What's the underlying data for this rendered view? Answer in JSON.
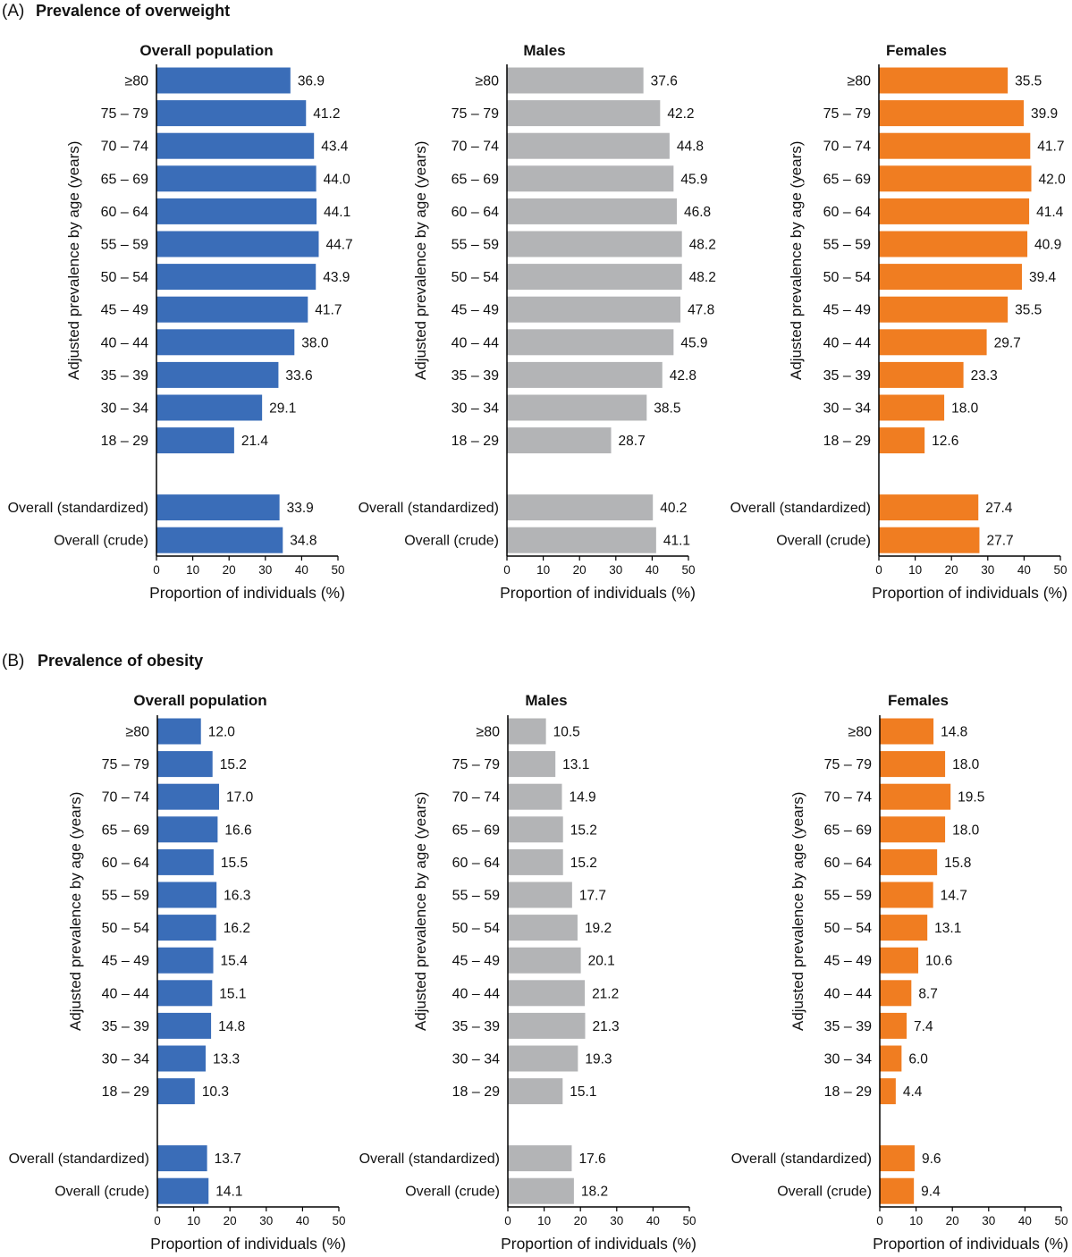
{
  "panels": [
    {
      "letter": "(A)",
      "title": "Prevalence of overweight"
    },
    {
      "letter": "(B)",
      "title": "Prevalence of obesity"
    }
  ],
  "chart_data": [
    {
      "type": "bar",
      "panel": "A",
      "orientation": "horizontal",
      "title": "Overall population",
      "ylabel": "Adjusted prevalence by age (years)",
      "xlabel": "Proportion of individuals (%)",
      "xlim": [
        0,
        50
      ],
      "xticks": [
        0,
        10,
        20,
        30,
        40,
        50
      ],
      "color": "#3A6DB8",
      "categories": [
        "≥80",
        "75 – 79",
        "70 – 74",
        "65 – 69",
        "60 – 64",
        "55 – 59",
        "50 – 54",
        "45 – 49",
        "40 – 44",
        "35 – 39",
        "30 – 34",
        "18 – 29"
      ],
      "values": [
        36.9,
        41.2,
        43.4,
        44.0,
        44.1,
        44.7,
        43.9,
        41.7,
        38.0,
        33.6,
        29.1,
        21.4
      ],
      "summary_categories": [
        "Overall (standardized)",
        "Overall (crude)"
      ],
      "summary_values": [
        33.9,
        34.8
      ]
    },
    {
      "type": "bar",
      "panel": "A",
      "orientation": "horizontal",
      "title": "Males",
      "ylabel": "Adjusted prevalence by age (years)",
      "xlabel": "Proportion of individuals (%)",
      "xlim": [
        0,
        50
      ],
      "xticks": [
        0,
        10,
        20,
        30,
        40,
        50
      ],
      "color": "#B3B4B6",
      "categories": [
        "≥80",
        "75 – 79",
        "70 – 74",
        "65 – 69",
        "60 – 64",
        "55 – 59",
        "50 – 54",
        "45 – 49",
        "40 – 44",
        "35 – 39",
        "30 – 34",
        "18 – 29"
      ],
      "values": [
        37.6,
        42.2,
        44.8,
        45.9,
        46.8,
        48.2,
        48.2,
        47.8,
        45.9,
        42.8,
        38.5,
        28.7
      ],
      "summary_categories": [
        "Overall (standardized)",
        "Overall (crude)"
      ],
      "summary_values": [
        40.2,
        41.1
      ]
    },
    {
      "type": "bar",
      "panel": "A",
      "orientation": "horizontal",
      "title": "Females",
      "ylabel": "Adjusted prevalence by age (years)",
      "xlabel": "Proportion of individuals (%)",
      "xlim": [
        0,
        50
      ],
      "xticks": [
        0,
        10,
        20,
        30,
        40,
        50
      ],
      "color": "#F07D21",
      "categories": [
        "≥80",
        "75 – 79",
        "70 – 74",
        "65 – 69",
        "60 – 64",
        "55 – 59",
        "50 – 54",
        "45 – 49",
        "40 – 44",
        "35 – 39",
        "30 – 34",
        "18 – 29"
      ],
      "values": [
        35.5,
        39.9,
        41.7,
        42.0,
        41.4,
        40.9,
        39.4,
        35.5,
        29.7,
        23.3,
        18.0,
        12.6
      ],
      "summary_categories": [
        "Overall (standardized)",
        "Overall (crude)"
      ],
      "summary_values": [
        27.4,
        27.7
      ]
    },
    {
      "type": "bar",
      "panel": "B",
      "orientation": "horizontal",
      "title": "Overall population",
      "ylabel": "Adjusted prevalence by age (years)",
      "xlabel": "Proportion of individuals (%)",
      "xlim": [
        0,
        50
      ],
      "xticks": [
        0,
        10,
        20,
        30,
        40,
        50
      ],
      "color": "#3A6DB8",
      "categories": [
        "≥80",
        "75 – 79",
        "70 – 74",
        "65 – 69",
        "60 – 64",
        "55 – 59",
        "50 – 54",
        "45 – 49",
        "40 – 44",
        "35 – 39",
        "30 – 34",
        "18 – 29"
      ],
      "values": [
        12.0,
        15.2,
        17.0,
        16.6,
        15.5,
        16.3,
        16.2,
        15.4,
        15.1,
        14.8,
        13.3,
        10.3
      ],
      "summary_categories": [
        "Overall (standardized)",
        "Overall (crude)"
      ],
      "summary_values": [
        13.7,
        14.1
      ]
    },
    {
      "type": "bar",
      "panel": "B",
      "orientation": "horizontal",
      "title": "Males",
      "ylabel": "Adjusted prevalence by age (years)",
      "xlabel": "Proportion of individuals (%)",
      "xlim": [
        0,
        50
      ],
      "xticks": [
        0,
        10,
        20,
        30,
        40,
        50
      ],
      "color": "#B3B4B6",
      "categories": [
        "≥80",
        "75 – 79",
        "70 – 74",
        "65 – 69",
        "60 – 64",
        "55 – 59",
        "50 – 54",
        "45 – 49",
        "40 – 44",
        "35 – 39",
        "30 – 34",
        "18 – 29"
      ],
      "values": [
        10.5,
        13.1,
        14.9,
        15.2,
        15.2,
        17.7,
        19.2,
        20.1,
        21.2,
        21.3,
        19.3,
        15.1
      ],
      "summary_categories": [
        "Overall (standardized)",
        "Overall (crude)"
      ],
      "summary_values": [
        17.6,
        18.2
      ]
    },
    {
      "type": "bar",
      "panel": "B",
      "orientation": "horizontal",
      "title": "Females",
      "ylabel": "Adjusted prevalence by age (years)",
      "xlabel": "Proportion of individuals (%)",
      "xlim": [
        0,
        50
      ],
      "xticks": [
        0,
        10,
        20,
        30,
        40,
        50
      ],
      "color": "#F07D21",
      "categories": [
        "≥80",
        "75 – 79",
        "70 – 74",
        "65 – 69",
        "60 – 64",
        "55 – 59",
        "50 – 54",
        "45 – 49",
        "40 – 44",
        "35 – 39",
        "30 – 34",
        "18 – 29"
      ],
      "values": [
        14.8,
        18.0,
        19.5,
        18.0,
        15.8,
        14.7,
        13.1,
        10.6,
        8.7,
        7.4,
        6.0,
        4.4
      ],
      "summary_categories": [
        "Overall (standardized)",
        "Overall (crude)"
      ],
      "summary_values": [
        9.6,
        9.4
      ]
    }
  ]
}
